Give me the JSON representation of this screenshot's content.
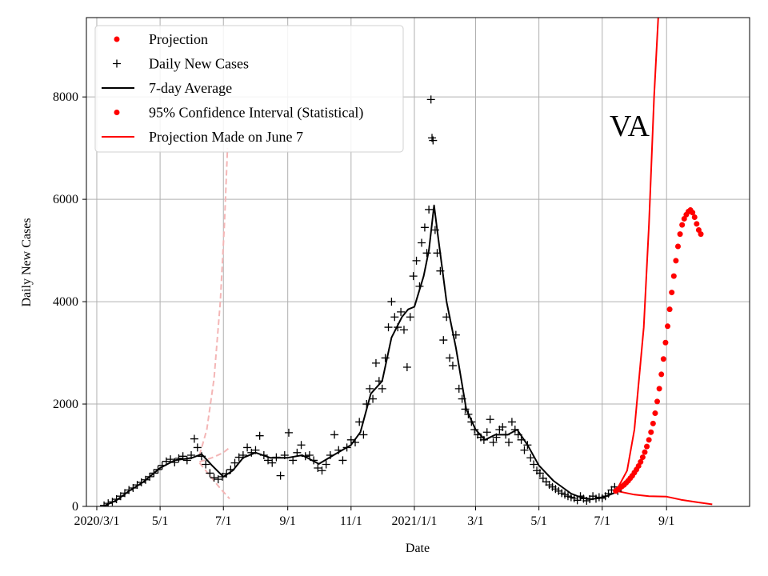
{
  "chart_data": {
    "type": "line",
    "title": "",
    "annotation": "VA",
    "xlabel": "Date",
    "ylabel": "Daily New Cases",
    "xlim": [
      "2020-02-20",
      "2021-11-20"
    ],
    "ylim": [
      0,
      9550
    ],
    "x_ticks": [
      {
        "date": "2020-03-01",
        "label": "2020/3/1"
      },
      {
        "date": "2020-05-01",
        "label": "5/1"
      },
      {
        "date": "2020-07-01",
        "label": "7/1"
      },
      {
        "date": "2020-09-01",
        "label": "9/1"
      },
      {
        "date": "2020-11-01",
        "label": "11/1"
      },
      {
        "date": "2021-01-01",
        "label": "2021/1/1"
      },
      {
        "date": "2021-03-01",
        "label": "3/1"
      },
      {
        "date": "2021-05-01",
        "label": "5/1"
      },
      {
        "date": "2021-07-01",
        "label": "7/1"
      },
      {
        "date": "2021-09-01",
        "label": "9/1"
      }
    ],
    "y_ticks": [
      0,
      2000,
      4000,
      6000,
      8000
    ],
    "grid": true,
    "legend_position": "top-left",
    "colors": {
      "projection": "#ff0000",
      "daily": "#000000",
      "average": "#000000",
      "ci": "#ff0000",
      "old_projection": "#ff0000",
      "old_projection_ci": "#f4b6b6"
    },
    "legend": [
      {
        "label": "Projection",
        "marker": "dot",
        "color": "#ff0000"
      },
      {
        "label": "Daily New Cases",
        "marker": "plus",
        "color": "#000000"
      },
      {
        "label": "7-day Average",
        "marker": "line",
        "color": "#000000"
      },
      {
        "label": "95% Confidence Interval (Statistical)",
        "marker": "dot",
        "color": "#ff0000"
      },
      {
        "label": "Projection Made on June 7",
        "marker": "line",
        "color": "#ff0000"
      }
    ],
    "series": [
      {
        "key": "average",
        "style": "line",
        "color": "#000000",
        "points": [
          [
            "2020-03-08",
            10
          ],
          [
            "2020-03-20",
            120
          ],
          [
            "2020-04-01",
            300
          ],
          [
            "2020-04-15",
            480
          ],
          [
            "2020-05-01",
            750
          ],
          [
            "2020-05-15",
            900
          ],
          [
            "2020-06-01",
            950
          ],
          [
            "2020-06-10",
            1020
          ],
          [
            "2020-06-20",
            800
          ],
          [
            "2020-07-01",
            580
          ],
          [
            "2020-07-10",
            700
          ],
          [
            "2020-07-20",
            950
          ],
          [
            "2020-08-01",
            1050
          ],
          [
            "2020-08-15",
            950
          ],
          [
            "2020-09-01",
            950
          ],
          [
            "2020-09-15",
            1000
          ],
          [
            "2020-10-01",
            830
          ],
          [
            "2020-10-15",
            1000
          ],
          [
            "2020-11-01",
            1200
          ],
          [
            "2020-11-10",
            1450
          ],
          [
            "2020-11-20",
            2200
          ],
          [
            "2020-12-01",
            2450
          ],
          [
            "2020-12-10",
            3300
          ],
          [
            "2020-12-20",
            3700
          ],
          [
            "2020-12-26",
            3850
          ],
          [
            "2021-01-01",
            3900
          ],
          [
            "2021-01-10",
            4500
          ],
          [
            "2021-01-15",
            5000
          ],
          [
            "2021-01-20",
            5880
          ],
          [
            "2021-01-23",
            5400
          ],
          [
            "2021-02-01",
            4000
          ],
          [
            "2021-02-10",
            3100
          ],
          [
            "2021-02-20",
            1900
          ],
          [
            "2021-03-01",
            1500
          ],
          [
            "2021-03-10",
            1300
          ],
          [
            "2021-03-20",
            1400
          ],
          [
            "2021-04-01",
            1400
          ],
          [
            "2021-04-10",
            1500
          ],
          [
            "2021-04-20",
            1200
          ],
          [
            "2021-05-01",
            800
          ],
          [
            "2021-05-15",
            500
          ],
          [
            "2021-06-01",
            250
          ],
          [
            "2021-06-10",
            180
          ],
          [
            "2021-06-20",
            140
          ],
          [
            "2021-07-01",
            170
          ],
          [
            "2021-07-15",
            280
          ]
        ]
      },
      {
        "key": "ci_upper",
        "style": "line",
        "color": "#ff0000",
        "points": [
          [
            "2021-07-15",
            320
          ],
          [
            "2021-07-25",
            700
          ],
          [
            "2021-08-01",
            1500
          ],
          [
            "2021-08-10",
            3500
          ],
          [
            "2021-08-15",
            5500
          ],
          [
            "2021-08-20",
            8000
          ],
          [
            "2021-08-24",
            9550
          ]
        ]
      },
      {
        "key": "ci_lower",
        "style": "line",
        "color": "#ff0000",
        "points": [
          [
            "2021-07-15",
            300
          ],
          [
            "2021-08-01",
            230
          ],
          [
            "2021-08-15",
            200
          ],
          [
            "2021-09-01",
            190
          ],
          [
            "2021-09-15",
            130
          ],
          [
            "2021-10-01",
            80
          ],
          [
            "2021-10-15",
            40
          ]
        ]
      },
      {
        "key": "old_projection_upper",
        "style": "dashed",
        "color": "#f4b6b6",
        "points": [
          [
            "2020-06-08",
            1000
          ],
          [
            "2020-06-15",
            1500
          ],
          [
            "2020-06-22",
            2500
          ],
          [
            "2020-06-28",
            4000
          ],
          [
            "2020-07-02",
            5500
          ],
          [
            "2020-07-05",
            7000
          ]
        ]
      },
      {
        "key": "old_projection_middle",
        "style": "dashed",
        "color": "#f4b6b6",
        "points": [
          [
            "2020-06-08",
            870
          ],
          [
            "2020-06-20",
            950
          ],
          [
            "2020-07-01",
            1050
          ],
          [
            "2020-07-07",
            1150
          ]
        ]
      },
      {
        "key": "old_projection_lower",
        "style": "dashed",
        "color": "#f4b6b6",
        "points": [
          [
            "2020-06-08",
            850
          ],
          [
            "2020-06-20",
            550
          ],
          [
            "2020-06-28",
            350
          ],
          [
            "2020-07-07",
            150
          ]
        ]
      }
    ],
    "daily_cases": [
      [
        "2020-03-08",
        20
      ],
      [
        "2020-03-12",
        60
      ],
      [
        "2020-03-16",
        90
      ],
      [
        "2020-03-20",
        140
      ],
      [
        "2020-03-24",
        200
      ],
      [
        "2020-03-28",
        260
      ],
      [
        "2020-04-01",
        320
      ],
      [
        "2020-04-05",
        360
      ],
      [
        "2020-04-09",
        420
      ],
      [
        "2020-04-13",
        470
      ],
      [
        "2020-04-17",
        520
      ],
      [
        "2020-04-21",
        580
      ],
      [
        "2020-04-25",
        650
      ],
      [
        "2020-04-29",
        720
      ],
      [
        "2020-05-03",
        800
      ],
      [
        "2020-05-07",
        880
      ],
      [
        "2020-05-11",
        920
      ],
      [
        "2020-05-15",
        860
      ],
      [
        "2020-05-19",
        940
      ],
      [
        "2020-05-23",
        980
      ],
      [
        "2020-05-27",
        900
      ],
      [
        "2020-05-31",
        1000
      ],
      [
        "2020-06-03",
        1320
      ],
      [
        "2020-06-06",
        1150
      ],
      [
        "2020-06-10",
        980
      ],
      [
        "2020-06-14",
        820
      ],
      [
        "2020-06-18",
        650
      ],
      [
        "2020-06-22",
        560
      ],
      [
        "2020-06-26",
        530
      ],
      [
        "2020-06-30",
        580
      ],
      [
        "2020-07-04",
        640
      ],
      [
        "2020-07-08",
        720
      ],
      [
        "2020-07-12",
        850
      ],
      [
        "2020-07-16",
        960
      ],
      [
        "2020-07-20",
        1000
      ],
      [
        "2020-07-24",
        1150
      ],
      [
        "2020-07-28",
        1050
      ],
      [
        "2020-08-01",
        1100
      ],
      [
        "2020-08-05",
        1380
      ],
      [
        "2020-08-09",
        1000
      ],
      [
        "2020-08-13",
        900
      ],
      [
        "2020-08-17",
        850
      ],
      [
        "2020-08-21",
        960
      ],
      [
        "2020-08-25",
        600
      ],
      [
        "2020-08-29",
        1000
      ],
      [
        "2020-09-02",
        1440
      ],
      [
        "2020-09-06",
        900
      ],
      [
        "2020-09-10",
        1050
      ],
      [
        "2020-09-14",
        1200
      ],
      [
        "2020-09-18",
        980
      ],
      [
        "2020-09-22",
        1000
      ],
      [
        "2020-09-26",
        900
      ],
      [
        "2020-09-30",
        750
      ],
      [
        "2020-10-04",
        700
      ],
      [
        "2020-10-08",
        820
      ],
      [
        "2020-10-12",
        1000
      ],
      [
        "2020-10-16",
        1400
      ],
      [
        "2020-10-20",
        1100
      ],
      [
        "2020-10-24",
        900
      ],
      [
        "2020-10-28",
        1150
      ],
      [
        "2020-11-01",
        1300
      ],
      [
        "2020-11-05",
        1250
      ],
      [
        "2020-11-09",
        1650
      ],
      [
        "2020-11-13",
        1400
      ],
      [
        "2020-11-16",
        2000
      ],
      [
        "2020-11-19",
        2300
      ],
      [
        "2020-11-22",
        2100
      ],
      [
        "2020-11-25",
        2800
      ],
      [
        "2020-11-28",
        2450
      ],
      [
        "2020-12-01",
        2300
      ],
      [
        "2020-12-04",
        2900
      ],
      [
        "2020-12-07",
        3500
      ],
      [
        "2020-12-10",
        4000
      ],
      [
        "2020-12-13",
        3700
      ],
      [
        "2020-12-16",
        3500
      ],
      [
        "2020-12-19",
        3800
      ],
      [
        "2020-12-22",
        3450
      ],
      [
        "2020-12-25",
        2720
      ],
      [
        "2020-12-28",
        3700
      ],
      [
        "2020-12-31",
        4500
      ],
      [
        "2021-01-03",
        4800
      ],
      [
        "2021-01-06",
        4300
      ],
      [
        "2021-01-08",
        5150
      ],
      [
        "2021-01-11",
        5450
      ],
      [
        "2021-01-13",
        4950
      ],
      [
        "2021-01-15",
        5800
      ],
      [
        "2021-01-17",
        7950
      ],
      [
        "2021-01-18",
        7200
      ],
      [
        "2021-01-19",
        7150
      ],
      [
        "2021-01-21",
        5400
      ],
      [
        "2021-01-23",
        4950
      ],
      [
        "2021-01-26",
        4600
      ],
      [
        "2021-01-29",
        3250
      ],
      [
        "2021-02-01",
        3700
      ],
      [
        "2021-02-04",
        2900
      ],
      [
        "2021-02-07",
        2750
      ],
      [
        "2021-02-10",
        3350
      ],
      [
        "2021-02-13",
        2300
      ],
      [
        "2021-02-16",
        2100
      ],
      [
        "2021-02-19",
        1900
      ],
      [
        "2021-02-22",
        1800
      ],
      [
        "2021-02-25",
        1650
      ],
      [
        "2021-02-28",
        1500
      ],
      [
        "2021-03-03",
        1400
      ],
      [
        "2021-03-06",
        1350
      ],
      [
        "2021-03-09",
        1300
      ],
      [
        "2021-03-12",
        1450
      ],
      [
        "2021-03-15",
        1700
      ],
      [
        "2021-03-18",
        1250
      ],
      [
        "2021-03-21",
        1350
      ],
      [
        "2021-03-24",
        1500
      ],
      [
        "2021-03-27",
        1550
      ],
      [
        "2021-03-30",
        1400
      ],
      [
        "2021-04-02",
        1250
      ],
      [
        "2021-04-05",
        1650
      ],
      [
        "2021-04-08",
        1500
      ],
      [
        "2021-04-11",
        1400
      ],
      [
        "2021-04-14",
        1300
      ],
      [
        "2021-04-17",
        1100
      ],
      [
        "2021-04-20",
        1200
      ],
      [
        "2021-04-23",
        950
      ],
      [
        "2021-04-26",
        820
      ],
      [
        "2021-04-29",
        700
      ],
      [
        "2021-05-02",
        650
      ],
      [
        "2021-05-05",
        550
      ],
      [
        "2021-05-08",
        480
      ],
      [
        "2021-05-11",
        420
      ],
      [
        "2021-05-14",
        380
      ],
      [
        "2021-05-17",
        340
      ],
      [
        "2021-05-20",
        300
      ],
      [
        "2021-05-23",
        260
      ],
      [
        "2021-05-26",
        230
      ],
      [
        "2021-05-29",
        200
      ],
      [
        "2021-06-01",
        180
      ],
      [
        "2021-06-04",
        160
      ],
      [
        "2021-06-07",
        120
      ],
      [
        "2021-06-10",
        200
      ],
      [
        "2021-06-13",
        150
      ],
      [
        "2021-06-16",
        110
      ],
      [
        "2021-06-19",
        140
      ],
      [
        "2021-06-22",
        200
      ],
      [
        "2021-06-25",
        150
      ],
      [
        "2021-06-28",
        180
      ],
      [
        "2021-07-01",
        160
      ],
      [
        "2021-07-04",
        200
      ],
      [
        "2021-07-07",
        250
      ],
      [
        "2021-07-10",
        320
      ],
      [
        "2021-07-13",
        380
      ],
      [
        "2021-07-16",
        300
      ]
    ],
    "projection_points": [
      [
        "2021-07-14",
        300
      ],
      [
        "2021-07-16",
        330
      ],
      [
        "2021-07-18",
        360
      ],
      [
        "2021-07-20",
        390
      ],
      [
        "2021-07-22",
        420
      ],
      [
        "2021-07-24",
        460
      ],
      [
        "2021-07-26",
        500
      ],
      [
        "2021-07-28",
        550
      ],
      [
        "2021-07-30",
        600
      ],
      [
        "2021-08-01",
        660
      ],
      [
        "2021-08-03",
        720
      ],
      [
        "2021-08-05",
        790
      ],
      [
        "2021-08-07",
        870
      ],
      [
        "2021-08-09",
        960
      ],
      [
        "2021-08-11",
        1060
      ],
      [
        "2021-08-13",
        1170
      ],
      [
        "2021-08-15",
        1300
      ],
      [
        "2021-08-17",
        1450
      ],
      [
        "2021-08-19",
        1620
      ],
      [
        "2021-08-21",
        1820
      ],
      [
        "2021-08-23",
        2050
      ],
      [
        "2021-08-25",
        2300
      ],
      [
        "2021-08-27",
        2580
      ],
      [
        "2021-08-29",
        2880
      ],
      [
        "2021-08-31",
        3200
      ],
      [
        "2021-09-02",
        3520
      ],
      [
        "2021-09-04",
        3850
      ],
      [
        "2021-09-06",
        4180
      ],
      [
        "2021-09-08",
        4500
      ],
      [
        "2021-09-10",
        4800
      ],
      [
        "2021-09-12",
        5080
      ],
      [
        "2021-09-14",
        5320
      ],
      [
        "2021-09-16",
        5500
      ],
      [
        "2021-09-18",
        5620
      ],
      [
        "2021-09-20",
        5700
      ],
      [
        "2021-09-22",
        5760
      ],
      [
        "2021-09-24",
        5790
      ],
      [
        "2021-09-26",
        5740
      ],
      [
        "2021-09-28",
        5650
      ],
      [
        "2021-09-30",
        5520
      ],
      [
        "2021-10-02",
        5400
      ],
      [
        "2021-10-04",
        5320
      ]
    ]
  }
}
